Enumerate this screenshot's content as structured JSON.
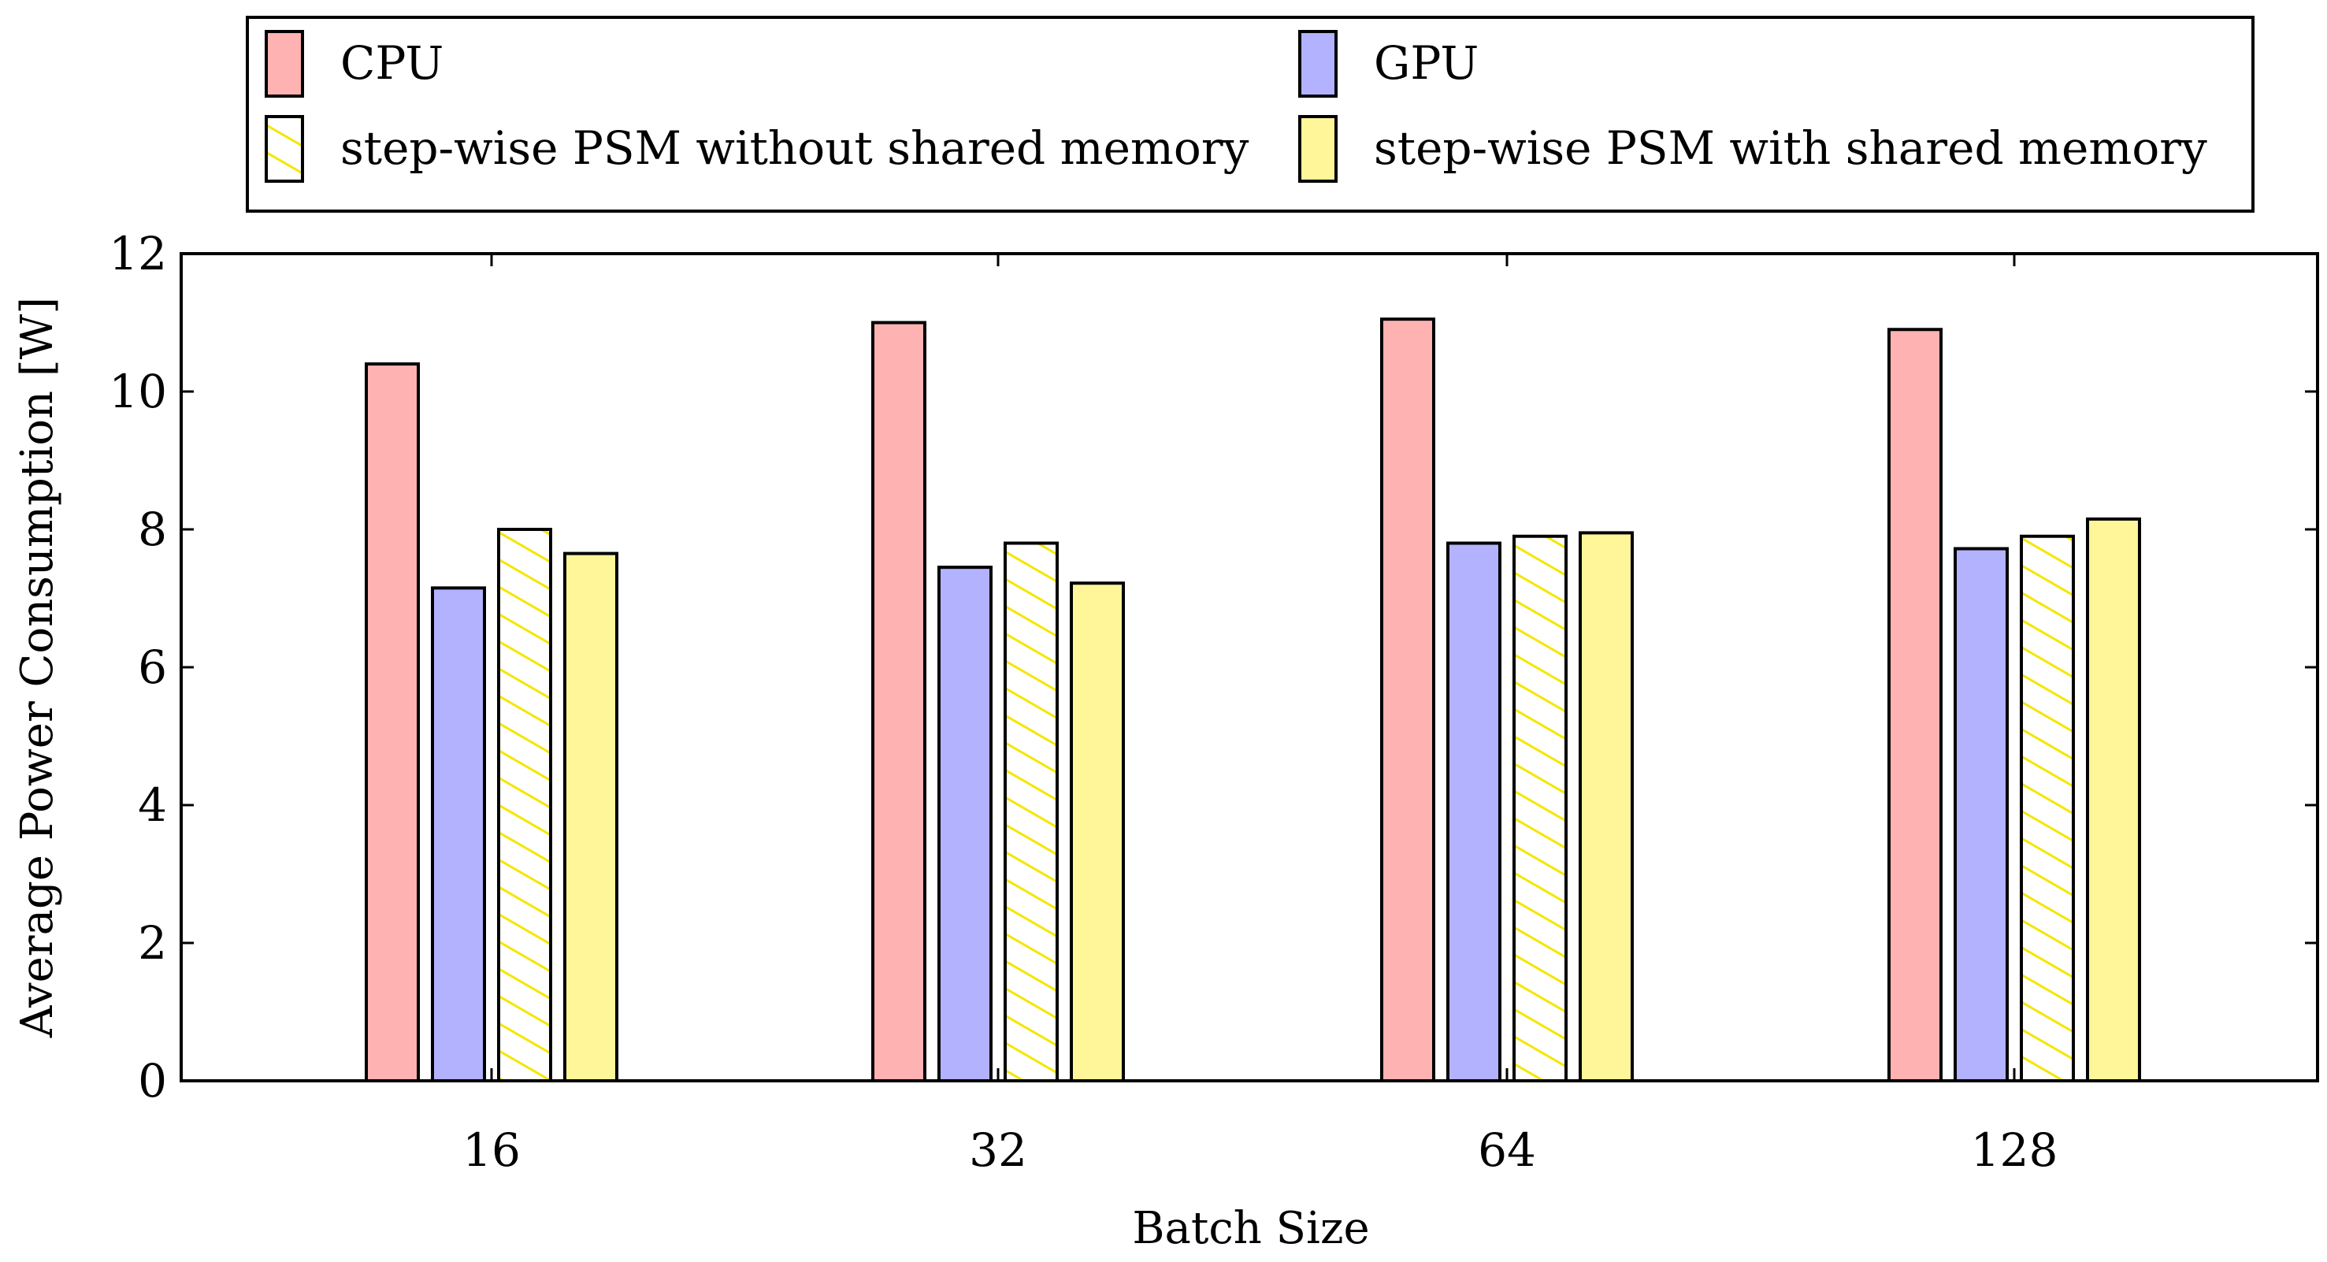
{
  "chart_data": {
    "type": "bar",
    "title": "",
    "xlabel": "Batch Size",
    "ylabel": "Average Power Consumption [W]",
    "categories": [
      "16",
      "32",
      "64",
      "128"
    ],
    "ylim": [
      0,
      12
    ],
    "yticks": [
      0,
      2,
      4,
      6,
      8,
      10,
      12
    ],
    "grid": false,
    "legend_position": "top",
    "series": [
      {
        "name": "CPU",
        "fill": "#ffb2b2",
        "hatch": false,
        "values": [
          10.4,
          11.0,
          11.05,
          10.9
        ]
      },
      {
        "name": "GPU",
        "fill": "#b2b2ff",
        "hatch": false,
        "values": [
          7.15,
          7.45,
          7.8,
          7.72
        ]
      },
      {
        "name": "step-wise PSM without shared memory",
        "fill": "#ffffff",
        "hatch": true,
        "hatch_color": "#f5e600",
        "values": [
          8.0,
          7.8,
          7.9,
          7.9
        ]
      },
      {
        "name": "step-wise PSM with shared memory",
        "fill": "#fff599",
        "hatch": false,
        "values": [
          7.65,
          7.22,
          7.95,
          8.15
        ]
      }
    ]
  }
}
